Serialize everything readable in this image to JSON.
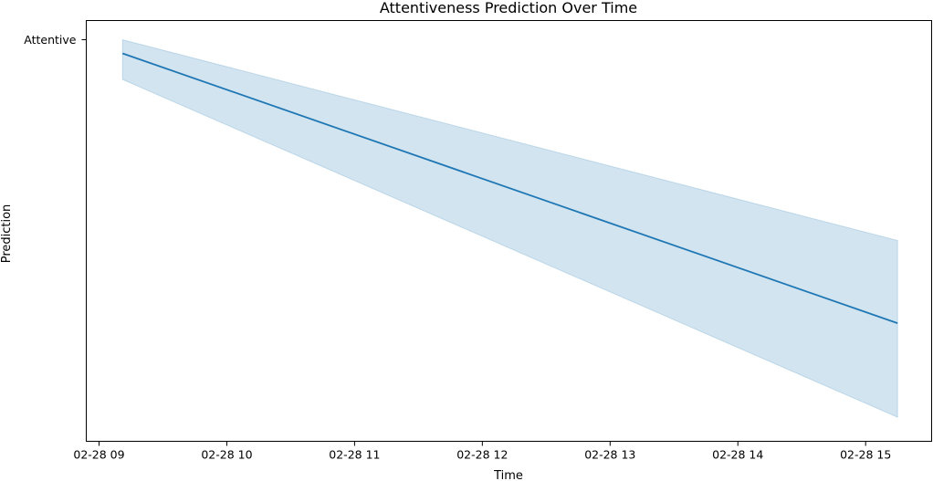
{
  "chart_data": {
    "type": "line",
    "title": "Attentiveness Prediction Over Time",
    "xlabel": "Time",
    "ylabel": "Prediction",
    "x_ticks": [
      "02-28 09",
      "02-28 10",
      "02-28 11",
      "02-28 12",
      "02-28 13",
      "02-28 14",
      "02-28 15"
    ],
    "y_ticks": [
      {
        "label": "Attentive",
        "value": 1.0
      }
    ],
    "xlim": [
      "2024-02-28 08:54",
      "2024-02-28 15:31"
    ],
    "ylim": [
      0.0,
      1.0
    ],
    "series": [
      {
        "x": [
          "2024-02-28 09:11",
          "2024-02-28 15:15"
        ],
        "values": [
          0.966,
          0.294
        ],
        "ci_lower": [
          0.901,
          0.06
        ],
        "ci_upper": [
          1.0,
          0.5
        ],
        "color": "#1f77b4"
      }
    ],
    "grid": false,
    "legend": false
  }
}
